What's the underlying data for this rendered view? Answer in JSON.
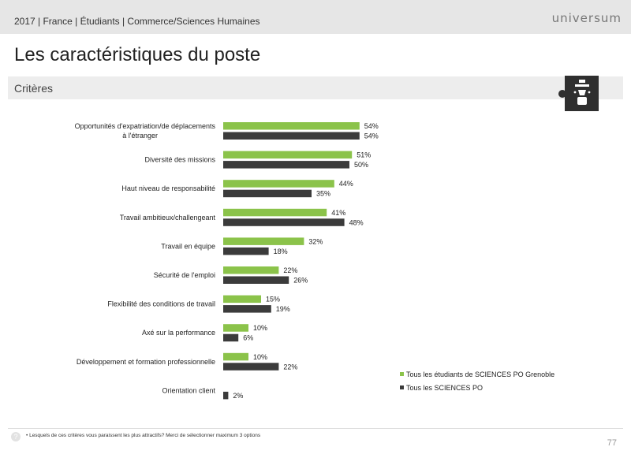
{
  "header": {
    "breadcrumb": "2017 | France | Étudiants | Commerce/Sciences Humaines",
    "logo": "universum"
  },
  "title": "Les caractéristiques du poste",
  "section": {
    "label": "Critères"
  },
  "colors": {
    "series1": "#8bc34a",
    "series2": "#3b3b3b"
  },
  "chart_data": {
    "type": "bar",
    "orientation": "horizontal",
    "categories": [
      [
        "Opportunités d'expatriation/de déplacements",
        "à l'étranger"
      ],
      [
        "Diversité des missions"
      ],
      [
        "Haut niveau de responsabilité"
      ],
      [
        "Travail ambitieux/challengeant"
      ],
      [
        "Travail en équipe"
      ],
      [
        "Sécurité de l'emploi"
      ],
      [
        "Flexibilité des conditions de travail"
      ],
      [
        "Axé sur la performance"
      ],
      [
        "Développement et formation professionnelle"
      ],
      [
        "Orientation client"
      ]
    ],
    "series": [
      {
        "name": "Tous les étudiants de SCIENCES PO Grenoble",
        "color": "#8bc34a",
        "values": [
          54,
          51,
          44,
          41,
          32,
          22,
          15,
          10,
          10,
          null
        ]
      },
      {
        "name": "Tous les SCIENCES PO",
        "color": "#3b3b3b",
        "values": [
          54,
          50,
          35,
          48,
          18,
          26,
          19,
          6,
          22,
          2
        ]
      }
    ],
    "value_suffix": "%",
    "legend_position": "bottom-right"
  },
  "footer": {
    "question_icon": "?",
    "note": "•  Lesquels de ces critères vous paraissent les plus attractifs? Merci de sélectionner maximum 3 options",
    "page_number": "77"
  }
}
